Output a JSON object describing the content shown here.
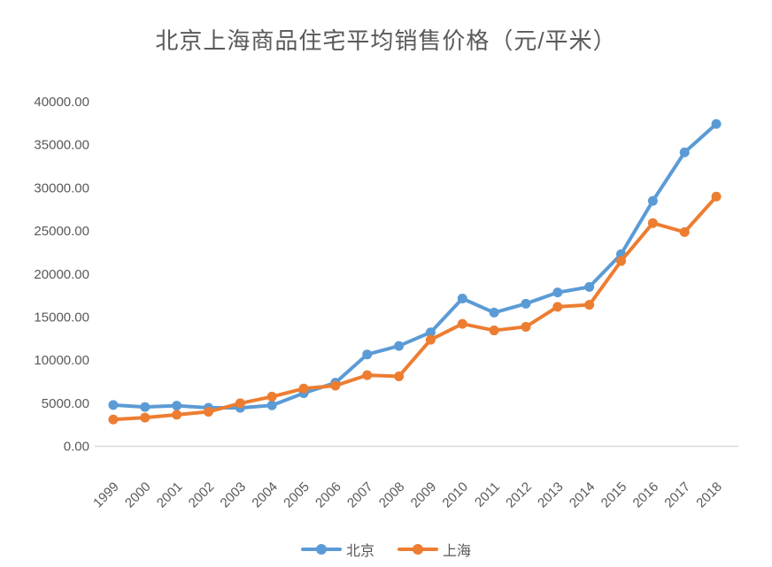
{
  "chart_data": {
    "type": "line",
    "title": "北京上海商品住宅平均销售价格（元/平米）",
    "xlabel": "",
    "ylabel": "",
    "categories": [
      "1999",
      "2000",
      "2001",
      "2002",
      "2003",
      "2004",
      "2005",
      "2006",
      "2007",
      "2008",
      "2009",
      "2010",
      "2011",
      "2012",
      "2013",
      "2014",
      "2015",
      "2016",
      "2017",
      "2018"
    ],
    "series": [
      {
        "name": "北京",
        "color": "#5B9BD5",
        "values": [
          4787,
          4557,
          4716,
          4467,
          4456,
          4747,
          6162,
          7375,
          10661,
          11648,
          13224,
          17151,
          15518,
          16553,
          17854,
          18499,
          22300,
          28489,
          34117,
          37420
        ]
      },
      {
        "name": "上海",
        "color": "#ED7D31",
        "values": [
          3102,
          3326,
          3658,
          4007,
          4989,
          5761,
          6698,
          7039,
          8253,
          8115,
          12364,
          14213,
          13448,
          13870,
          16192,
          16415,
          21501,
          25910,
          24866,
          28981
        ]
      }
    ],
    "ylim": [
      0,
      40000
    ],
    "ytick_step": 5000,
    "ytick_decimals": 2,
    "ytick_labels": [
      "0.00",
      "5000.00",
      "10000.00",
      "15000.00",
      "20000.00",
      "25000.00",
      "30000.00",
      "35000.00",
      "40000.00"
    ],
    "grid": false,
    "legend_position": "bottom-center",
    "x_label_rotation": 45,
    "marker": "circle",
    "colors": {
      "title_text": "#595959",
      "axis_text": "#595959",
      "axis_line": "#D9D9D9",
      "background": "#ffffff"
    }
  }
}
